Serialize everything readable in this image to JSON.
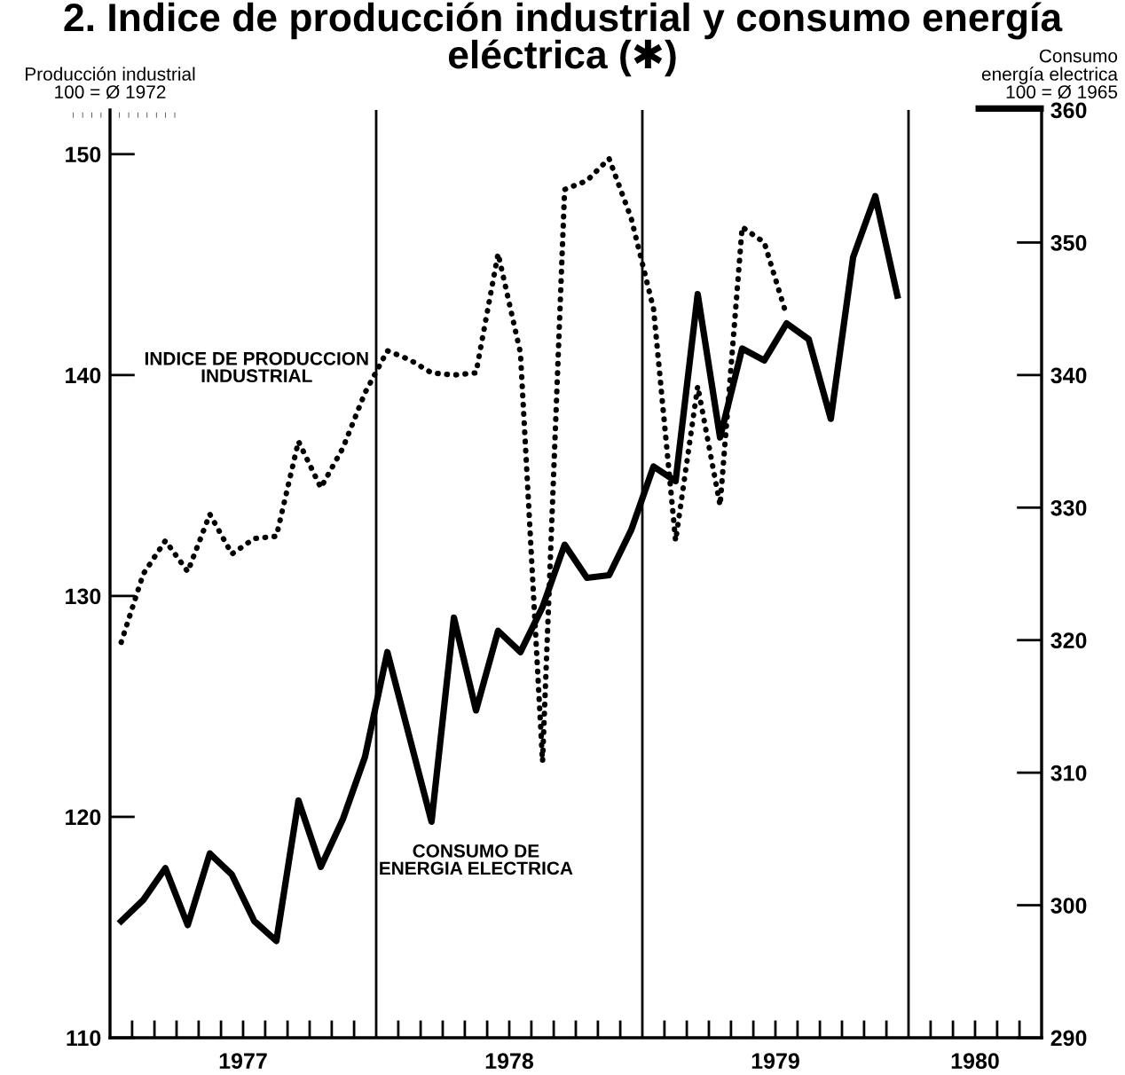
{
  "chart_data": {
    "type": "line",
    "title": "2. Indice de producción industrial y consumo energía eléctrica (✱)",
    "ylabel": "Producción industrial\n100 = Ø 1972",
    "y2label": "Consumo\nenergía electrica\n100 = Ø 1965",
    "xlim": [
      1977,
      1980.5
    ],
    "xticks": [
      {
        "value": 1977.083,
        "label": null
      },
      {
        "value": 1977.167,
        "label": null
      },
      {
        "value": 1977.25,
        "label": null
      },
      {
        "value": 1977.333,
        "label": null
      },
      {
        "value": 1977.417,
        "label": null
      },
      {
        "value": 1977.5,
        "label": "1977"
      },
      {
        "value": 1977.583,
        "label": null
      },
      {
        "value": 1977.667,
        "label": null
      },
      {
        "value": 1977.75,
        "label": null
      },
      {
        "value": 1977.833,
        "label": null
      },
      {
        "value": 1977.917,
        "label": null
      },
      {
        "value": 1978.083,
        "label": null
      },
      {
        "value": 1978.167,
        "label": null
      },
      {
        "value": 1978.25,
        "label": null
      },
      {
        "value": 1978.333,
        "label": null
      },
      {
        "value": 1978.417,
        "label": null
      },
      {
        "value": 1978.5,
        "label": "1978"
      },
      {
        "value": 1978.583,
        "label": null
      },
      {
        "value": 1978.667,
        "label": null
      },
      {
        "value": 1978.75,
        "label": null
      },
      {
        "value": 1978.833,
        "label": null
      },
      {
        "value": 1978.917,
        "label": null
      },
      {
        "value": 1979.083,
        "label": null
      },
      {
        "value": 1979.167,
        "label": null
      },
      {
        "value": 1979.25,
        "label": null
      },
      {
        "value": 1979.333,
        "label": null
      },
      {
        "value": 1979.417,
        "label": null
      },
      {
        "value": 1979.5,
        "label": "1979"
      },
      {
        "value": 1979.583,
        "label": null
      },
      {
        "value": 1979.667,
        "label": null
      },
      {
        "value": 1979.75,
        "label": null
      },
      {
        "value": 1979.833,
        "label": null
      },
      {
        "value": 1979.917,
        "label": null
      },
      {
        "value": 1980.083,
        "label": null
      },
      {
        "value": 1980.167,
        "label": null
      },
      {
        "value": 1980.25,
        "label": "1980"
      },
      {
        "value": 1980.333,
        "label": null
      },
      {
        "value": 1980.417,
        "label": null
      }
    ],
    "ylim": [
      110,
      152
    ],
    "yticks": [
      110,
      120,
      130,
      140,
      150
    ],
    "y2lim": [
      290,
      360
    ],
    "y2ticks": [
      290,
      300,
      310,
      320,
      330,
      340,
      350,
      360
    ],
    "grid": false,
    "legend": false,
    "marker": "none",
    "ref_lines": [
      {
        "axis": "x",
        "value": 1978,
        "color": "#000000"
      },
      {
        "axis": "x",
        "value": 1979,
        "color": "#000000"
      },
      {
        "axis": "x",
        "value": 1980,
        "color": "#000000"
      }
    ],
    "series": [
      {
        "name": "INDICE DE PRODUCCION\nINDUSTRIAL",
        "color": "#000000",
        "line_style": "dotted",
        "x": [
          1977.042,
          1977.125,
          1977.208,
          1977.292,
          1977.375,
          1977.458,
          1977.542,
          1977.625,
          1977.708,
          1977.792,
          1977.875,
          1977.958,
          1978.042,
          1978.125,
          1978.208,
          1978.292,
          1978.375,
          1978.458,
          1978.542,
          1978.625,
          1978.708,
          1978.792,
          1978.875,
          1978.958,
          1979.042,
          1979.125,
          1979.208,
          1979.292,
          1979.375,
          1979.458,
          1979.542
        ],
        "values": [
          127.9,
          131.0,
          132.5,
          131.1,
          133.7,
          131.9,
          132.6,
          132.7,
          137.0,
          134.9,
          136.7,
          139.2,
          141.1,
          140.7,
          140.1,
          140.0,
          140.1,
          145.5,
          141.0,
          122.5,
          148.4,
          148.8,
          149.8,
          147.1,
          143.0,
          132.5,
          139.5,
          134.1,
          146.7,
          146.0,
          142.7
        ]
      },
      {
        "name": "CONSUMO DE\nENERGIA ELECTRICA",
        "color": "#000000",
        "line_style": "solid",
        "axis": "y2",
        "x": [
          1977.042,
          1977.125,
          1977.208,
          1977.292,
          1977.375,
          1977.458,
          1977.542,
          1977.625,
          1977.708,
          1977.792,
          1977.875,
          1977.958,
          1978.042,
          1978.125,
          1978.208,
          1978.292,
          1978.375,
          1978.458,
          1978.542,
          1978.625,
          1978.708,
          1978.792,
          1978.875,
          1978.958,
          1979.042,
          1979.125,
          1979.208,
          1979.292,
          1979.375,
          1979.458,
          1979.542,
          1979.625,
          1979.708,
          1979.792,
          1979.875,
          1979.958
        ],
        "values": [
          298.8,
          300.4,
          302.8,
          298.5,
          303.9,
          302.3,
          298.8,
          297.3,
          307.9,
          302.9,
          306.5,
          311.2,
          319.1,
          312.7,
          306.3,
          321.7,
          314.7,
          320.7,
          319.1,
          322.5,
          327.2,
          324.7,
          324.9,
          328.3,
          333.1,
          332.0,
          346.1,
          335.3,
          342.0,
          341.1,
          343.9,
          342.7,
          336.7,
          348.9,
          353.5,
          346.0
        ]
      }
    ]
  }
}
